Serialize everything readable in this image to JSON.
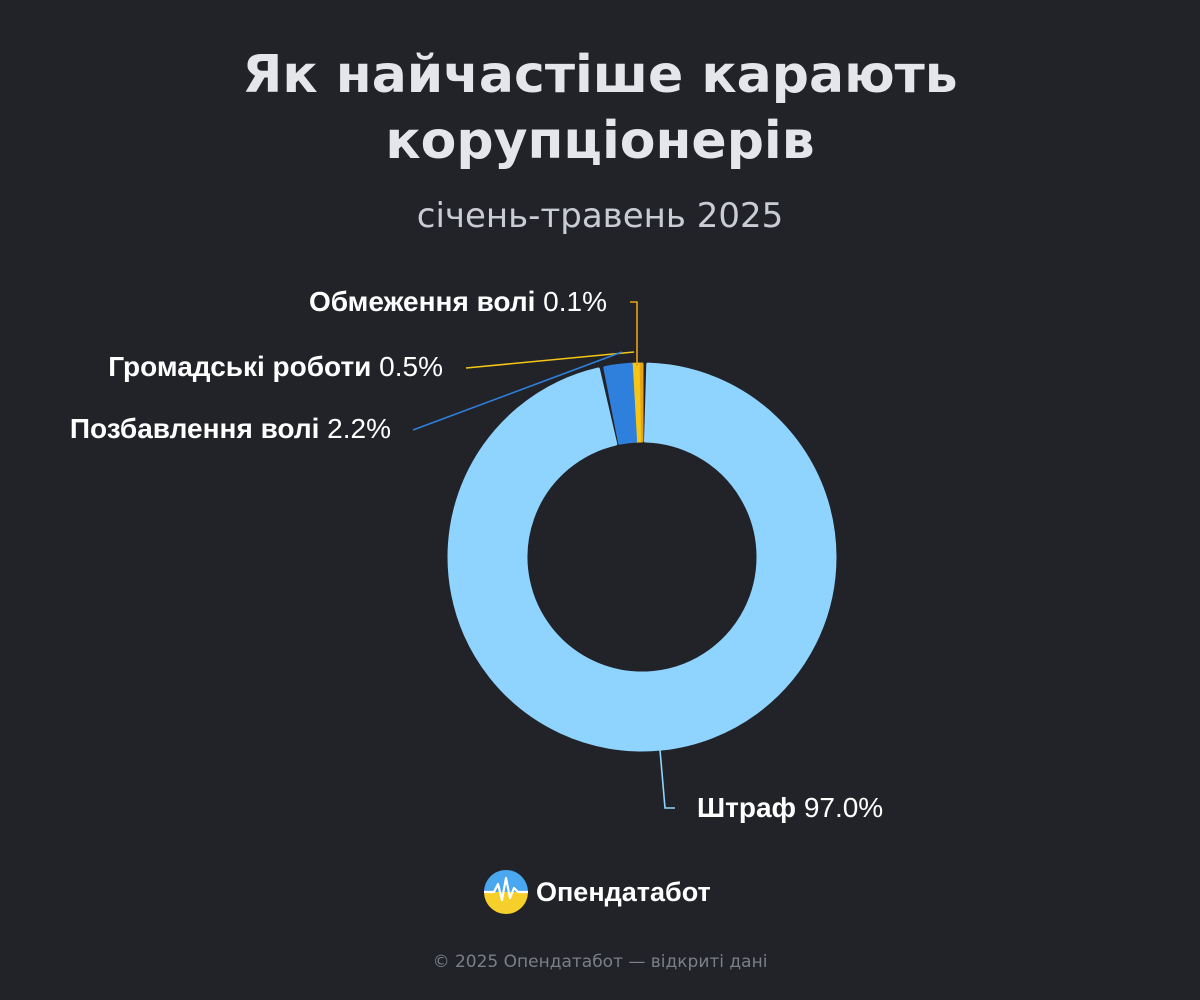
{
  "header": {
    "title_line1": "Як найчастіше карають",
    "title_line2": "корупціонерів",
    "subtitle": "січень-травень 2025"
  },
  "chart_data": {
    "type": "pie",
    "title": "Як найчастіше карають корупціонерів",
    "subtitle": "січень-травень 2025",
    "donut": true,
    "slices": [
      {
        "label": "Обмеження волі",
        "value": 0.1,
        "display": "0.1%",
        "color": "#e8a317"
      },
      {
        "label": "Громадські роботи",
        "value": 0.5,
        "display": "0.5%",
        "color": "#f5c518"
      },
      {
        "label": "Позбавлення волі",
        "value": 2.2,
        "display": "2.2%",
        "color": "#2f80dd"
      },
      {
        "label": "Штраф",
        "value": 97.0,
        "display": "97.0%",
        "color": "#8fd3ff"
      }
    ]
  },
  "branding": {
    "name": "Опендатабот",
    "logo_icon": "opendatabot-logo-icon"
  },
  "footer": {
    "text": "© 2025 Опендатабот — відкриті дані"
  },
  "colors": {
    "background": "#212328",
    "title": "#e4e6ea",
    "label": "#ffffff"
  }
}
